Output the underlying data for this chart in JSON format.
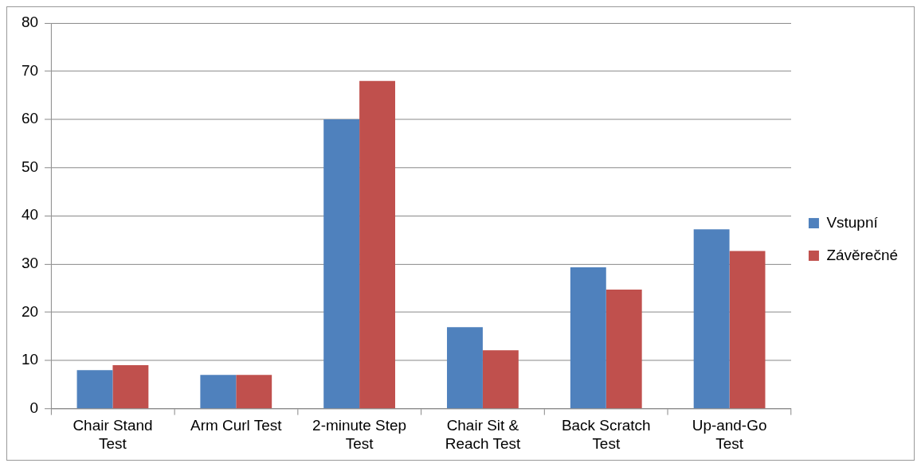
{
  "chart_data": {
    "type": "bar",
    "categories": [
      "Chair Stand Test",
      "Arm Curl Test",
      "2-minute Step Test",
      "Chair Sit & Reach Test",
      "Back Scratch Test",
      "Up-and-Go Test"
    ],
    "series": [
      {
        "name": "Vstupní",
        "color": "#4f81bd",
        "values": [
          8,
          7,
          60,
          16.9,
          29.3,
          37.2
        ]
      },
      {
        "name": "Závěrečné",
        "color": "#c0504d",
        "values": [
          9,
          7,
          68,
          12.1,
          24.7,
          32.7
        ]
      }
    ],
    "ylim": [
      0,
      80
    ],
    "yticks": [
      0,
      10,
      20,
      30,
      40,
      50,
      60,
      70,
      80
    ],
    "grid": "y",
    "legend": "right"
  }
}
